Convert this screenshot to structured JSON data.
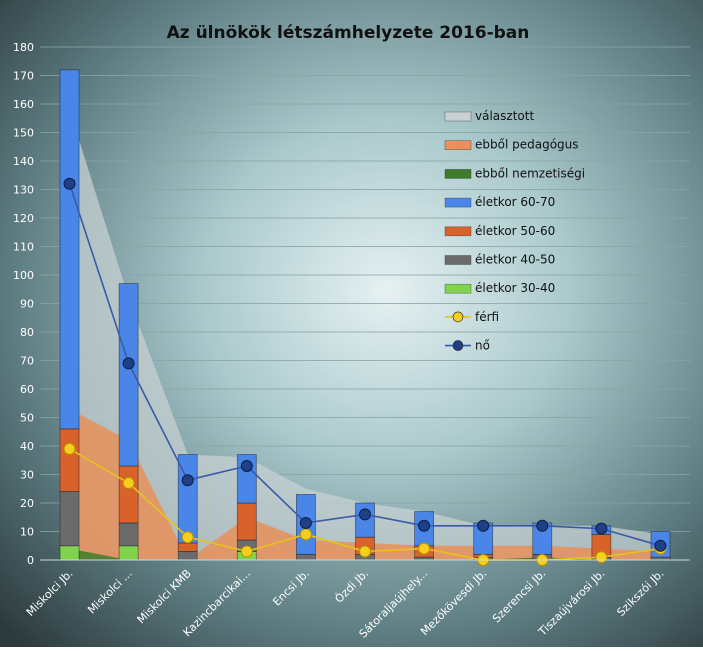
{
  "chart_data": {
    "type": "bar",
    "title": "Az ülnökök létszámhelyzete 2016-ban",
    "categories": [
      "Miskolci Jb.",
      "Miskolci ...",
      "Miskolci KMB",
      "Kazincbarcikai...",
      "Encsi Jb.",
      "Ózdi Jb.",
      "Sátoraljaújhely...",
      "Mezőkövesdi Jb.",
      "Szerencsi Jb.",
      "Tiszaújvárosi Jb.",
      "Szikszói Jb."
    ],
    "ylim": [
      0,
      180
    ],
    "yticks": [
      0,
      10,
      20,
      30,
      40,
      50,
      60,
      70,
      80,
      90,
      100,
      110,
      120,
      130,
      140,
      150,
      160,
      170,
      180
    ],
    "grid": true,
    "legend_position": "right",
    "area_series": [
      {
        "name": "választott",
        "values": [
          158,
          92,
          37,
          36,
          25,
          20,
          17,
          12,
          12,
          12,
          9
        ],
        "color": "#c9d1d3"
      },
      {
        "name": "ebből pedagógus",
        "values": [
          53,
          42,
          0,
          15,
          7,
          6,
          5,
          5,
          5,
          4,
          3
        ],
        "color": "#e8915a"
      },
      {
        "name": "ebből nemzetiségi",
        "values": [
          4,
          0,
          0,
          0,
          0,
          0,
          0,
          0,
          1,
          0,
          0
        ],
        "color": "#3e7c2b"
      }
    ],
    "bar_series": [
      {
        "name": "életkor 30-40",
        "values": [
          5,
          5,
          0,
          3,
          0,
          0,
          0,
          0,
          0,
          0,
          0
        ],
        "color": "#7fd34e"
      },
      {
        "name": "életkor 40-50",
        "values": [
          19,
          8,
          3,
          4,
          2,
          2,
          1,
          1,
          2,
          1,
          1
        ],
        "color": "#6b6b6b"
      },
      {
        "name": "életkor 50-60",
        "values": [
          22,
          20,
          3,
          13,
          0,
          6,
          4,
          1,
          0,
          8,
          0
        ],
        "color": "#d9622b"
      },
      {
        "name": "életkor 60-70",
        "values": [
          126,
          64,
          31,
          17,
          21,
          12,
          12,
          11,
          11,
          3,
          9
        ],
        "color": "#4a86e8"
      }
    ],
    "line_series": [
      {
        "name": "férfi",
        "values": [
          39,
          27,
          8,
          3,
          9,
          3,
          4,
          0,
          0,
          1,
          4
        ],
        "color": "#f5cf1c"
      },
      {
        "name": "nő",
        "values": [
          132,
          69,
          28,
          33,
          13,
          16,
          12,
          12,
          12,
          11,
          5
        ],
        "color": "#1f3f86"
      }
    ]
  }
}
